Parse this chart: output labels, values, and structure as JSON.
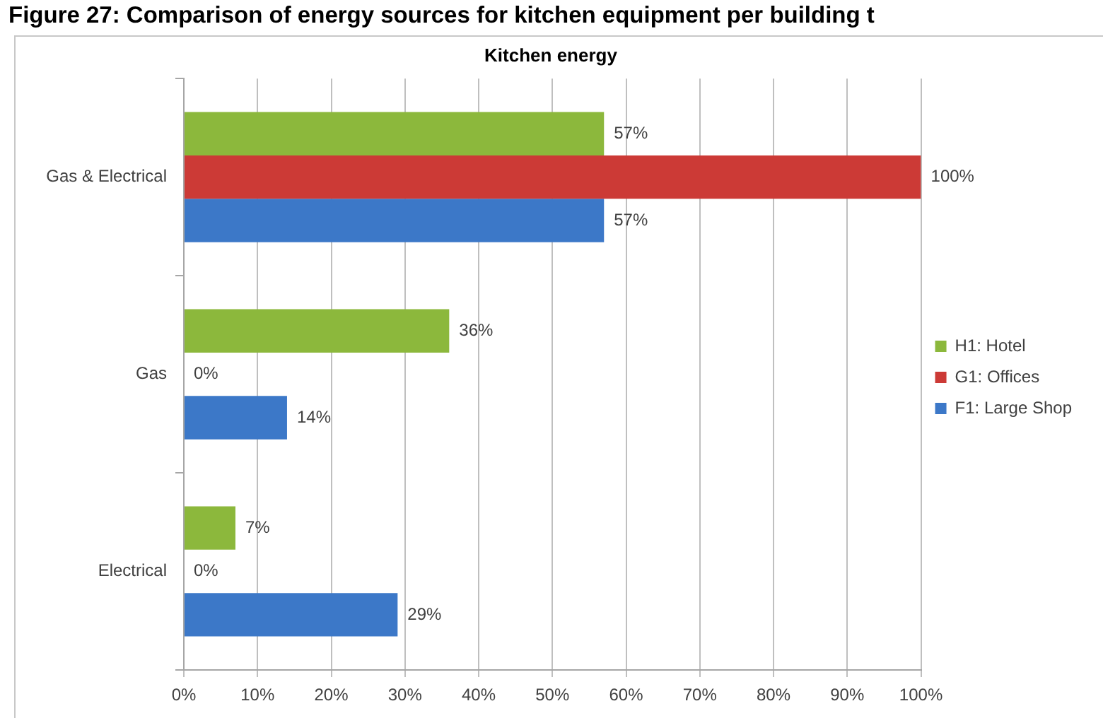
{
  "chart_data": {
    "type": "bar",
    "orientation": "horizontal",
    "title": "Figure 27: Comparison of energy sources for kitchen equipment per building t",
    "subtitle": "Kitchen energy",
    "categories": [
      "Gas & Electrical",
      "Gas",
      "Electrical"
    ],
    "series": [
      {
        "name": "H1: Hotel",
        "color": "#8cb83c",
        "values": [
          57,
          36,
          7
        ],
        "value_labels": [
          "57%",
          "36%",
          "7%"
        ]
      },
      {
        "name": "G1: Offices",
        "color": "#cc3a36",
        "values": [
          100,
          0,
          0
        ],
        "value_labels": [
          "100%",
          "0%",
          "0%"
        ]
      },
      {
        "name": "F1: Large Shop",
        "color": "#3c78c8",
        "values": [
          57,
          14,
          29
        ],
        "value_labels": [
          "57%",
          "14%",
          "29%"
        ]
      }
    ],
    "xlim": [
      0,
      100
    ],
    "xticks": [
      {
        "value": 0,
        "label": "0%"
      },
      {
        "value": 10,
        "label": "10%"
      },
      {
        "value": 20,
        "label": "20%"
      },
      {
        "value": 30,
        "label": "30%"
      },
      {
        "value": 40,
        "label": "40%"
      },
      {
        "value": 50,
        "label": "50%"
      },
      {
        "value": 60,
        "label": "60%"
      },
      {
        "value": 70,
        "label": "70%"
      },
      {
        "value": 80,
        "label": "80%"
      },
      {
        "value": 90,
        "label": "90%"
      },
      {
        "value": 100,
        "label": "100%"
      }
    ],
    "grid": "x",
    "legend": "right"
  }
}
